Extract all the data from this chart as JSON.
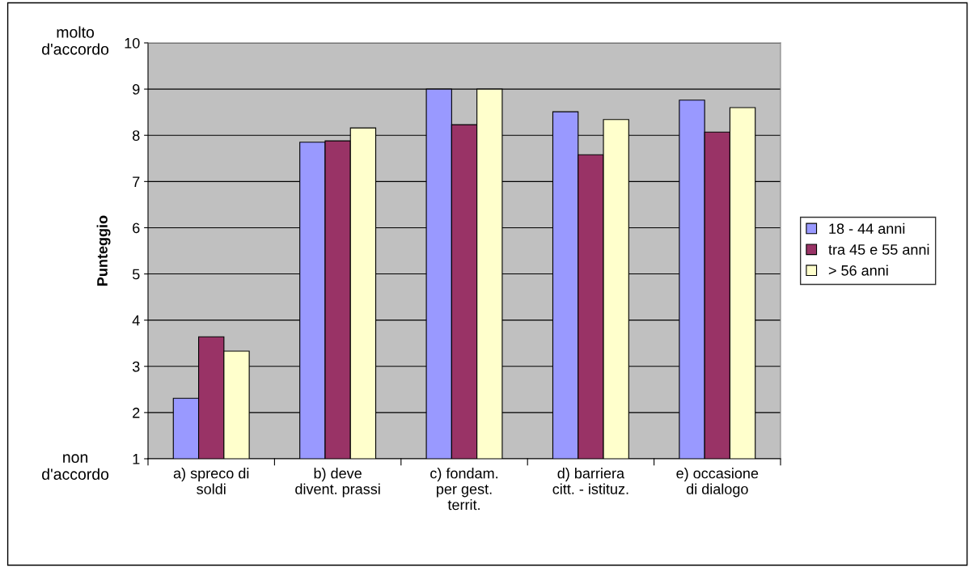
{
  "chart_data": {
    "type": "bar",
    "ylabel": "Punteggio",
    "categories": [
      "a) spreco di\nsoldi",
      "b) deve\ndivent. prassi",
      "c) fondam.\nper gest.\nterrit.",
      "d) barriera\ncitt. - istituz.",
      "e) occasione\ndi dialogo"
    ],
    "series": [
      {
        "name": "18 - 44 anni",
        "color": "#9999ff",
        "values": [
          2.31,
          7.85,
          9.0,
          8.51,
          8.76
        ]
      },
      {
        "name": "tra 45 e 55 anni",
        "color": "#993366",
        "values": [
          3.64,
          7.88,
          8.23,
          7.58,
          8.07
        ]
      },
      {
        "name": "> 56 anni",
        "color": "#ffffcc",
        "values": [
          3.33,
          8.16,
          9.0,
          8.34,
          8.6
        ]
      }
    ],
    "ylim": [
      1,
      10
    ],
    "yticks": [
      1,
      2,
      3,
      4,
      5,
      6,
      7,
      8,
      9,
      10
    ],
    "grid": "y",
    "legend": "right",
    "annotations": [
      "molto\nd'accordo",
      "non\nd'accordo"
    ]
  }
}
